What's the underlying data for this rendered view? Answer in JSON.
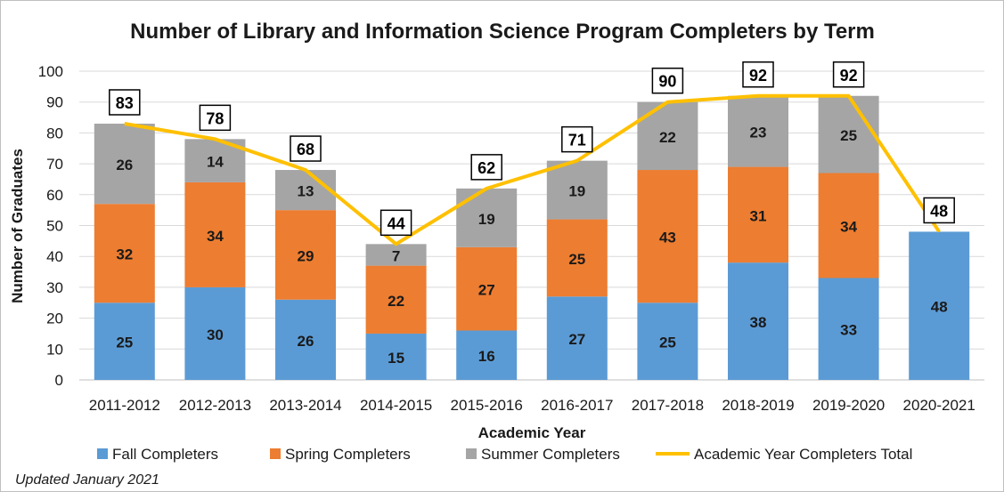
{
  "chart_data": {
    "type": "bar",
    "stacked": true,
    "title": "Number of Library and Information Science Program Completers by Term",
    "xlabel": "Academic Year",
    "ylabel": "Number of Graduates",
    "ylim": [
      0,
      100
    ],
    "yticks": [
      0,
      10,
      20,
      30,
      40,
      50,
      60,
      70,
      80,
      90,
      100
    ],
    "grid": true,
    "legend_position": "bottom",
    "categories": [
      "2011-2012",
      "2012-2013",
      "2013-2014",
      "2014-2015",
      "2015-2016",
      "2016-2017",
      "2017-2018",
      "2018-2019",
      "2019-2020",
      "2020-2021"
    ],
    "series": [
      {
        "name": "Fall Completers",
        "type": "bar",
        "color": "#5b9bd5",
        "values": [
          25,
          30,
          26,
          15,
          16,
          27,
          25,
          38,
          33,
          48
        ]
      },
      {
        "name": "Spring Completers",
        "type": "bar",
        "color": "#ed7d31",
        "values": [
          32,
          34,
          29,
          22,
          27,
          25,
          43,
          31,
          34,
          null
        ]
      },
      {
        "name": "Summer Completers",
        "type": "bar",
        "color": "#a5a5a5",
        "values": [
          26,
          14,
          13,
          7,
          19,
          19,
          22,
          23,
          25,
          null
        ]
      },
      {
        "name": "Academic Year Completers Total",
        "type": "line",
        "color": "#ffc000",
        "values": [
          83,
          78,
          68,
          44,
          62,
          71,
          90,
          92,
          92,
          48
        ]
      }
    ],
    "note": "Updated January 2021"
  }
}
